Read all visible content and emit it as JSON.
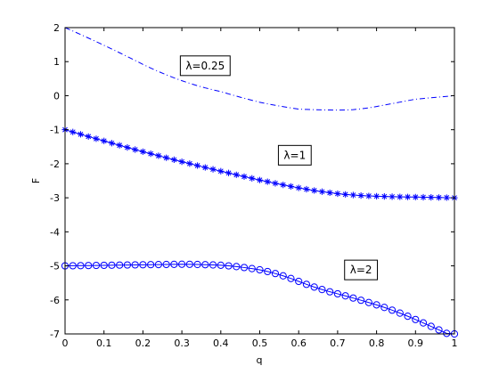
{
  "chart_data": {
    "type": "line",
    "xlabel": "q",
    "ylabel": "F",
    "xlim": [
      0,
      1
    ],
    "ylim": [
      -7,
      2
    ],
    "x_ticks": [
      "0",
      "0.1",
      "0.2",
      "0.3",
      "0.4",
      "0.5",
      "0.6",
      "0.7",
      "0.8",
      "0.9",
      "1"
    ],
    "y_ticks": [
      "2",
      "1",
      "0",
      "-1",
      "-2",
      "-3",
      "-4",
      "-5",
      "-6",
      "-7"
    ],
    "grid": false,
    "colors": {
      "series": "#0000ff",
      "axes": "#000000",
      "background": "#ffffff"
    },
    "x": [
      0,
      0.02,
      0.04,
      0.06,
      0.08,
      0.1,
      0.12,
      0.14,
      0.16,
      0.18,
      0.2,
      0.22,
      0.24,
      0.26,
      0.28,
      0.3,
      0.32,
      0.34,
      0.36,
      0.38,
      0.4,
      0.42,
      0.44,
      0.46,
      0.48,
      0.5,
      0.52,
      0.54,
      0.56,
      0.58,
      0.6,
      0.62,
      0.64,
      0.66,
      0.68,
      0.7,
      0.72,
      0.74,
      0.76,
      0.78,
      0.8,
      0.82,
      0.84,
      0.86,
      0.88,
      0.9,
      0.92,
      0.94,
      0.96,
      0.98,
      1
    ],
    "series": [
      {
        "line_style": "dash-dot",
        "marker": "none",
        "values": [
          2.0,
          1.8992,
          1.7968,
          1.6928,
          1.5872,
          1.48,
          1.3712,
          1.2608,
          1.1488,
          1.0352,
          0.92,
          0.8112,
          0.7088,
          0.6128,
          0.5232,
          0.44,
          0.3632,
          0.2928,
          0.2288,
          0.1712,
          0.12,
          0.0525,
          -0.0128,
          -0.0757,
          -0.1361,
          -0.1941,
          -0.2396,
          -0.2825,
          -0.3228,
          -0.3604,
          -0.3954,
          -0.4044,
          -0.4116,
          -0.4172,
          -0.421,
          -0.4232,
          -0.4205,
          -0.4087,
          -0.3876,
          -0.3574,
          -0.318,
          -0.2754,
          -0.2326,
          -0.1896,
          -0.1464,
          -0.103,
          -0.0822,
          -0.0617,
          -0.0413,
          -0.0206,
          0.0
        ]
      },
      {
        "line_style": "solid",
        "marker": "asterisk",
        "values": [
          -1.0,
          -1.0676,
          -1.1344,
          -1.2004,
          -1.2656,
          -1.33,
          -1.3946,
          -1.4584,
          -1.5214,
          -1.5836,
          -1.645,
          -1.7056,
          -1.7654,
          -1.8244,
          -1.8826,
          -1.94,
          -1.9972,
          -2.0536,
          -2.1092,
          -2.164,
          -2.218,
          -2.2718,
          -2.3248,
          -2.377,
          -2.4284,
          -2.479,
          -2.5274,
          -2.5746,
          -2.6206,
          -2.6654,
          -2.709,
          -2.7494,
          -2.7866,
          -2.8206,
          -2.8514,
          -2.879,
          -2.9008,
          -2.9192,
          -2.9342,
          -2.9458,
          -2.954,
          -2.9614,
          -2.9676,
          -2.9726,
          -2.9764,
          -2.979,
          -2.9832,
          -2.9874,
          -2.9916,
          -2.9958,
          -3.0
        ]
      },
      {
        "line_style": "solid",
        "marker": "circle",
        "values": [
          -5.0,
          -4.9968,
          -4.9936,
          -4.9904,
          -4.9872,
          -4.984,
          -4.9808,
          -4.9776,
          -4.9744,
          -4.9712,
          -4.968,
          -4.9648,
          -4.9616,
          -4.9584,
          -4.9552,
          -4.952,
          -4.9548,
          -4.9592,
          -4.9652,
          -4.9728,
          -4.982,
          -5.0,
          -5.0224,
          -5.0492,
          -5.0804,
          -5.116,
          -5.1664,
          -5.2256,
          -5.2936,
          -5.3704,
          -5.456,
          -5.5426,
          -5.6224,
          -5.6954,
          -5.7616,
          -5.821,
          -5.8824,
          -5.9456,
          -6.0106,
          -6.0774,
          -6.146,
          -6.2216,
          -6.3024,
          -6.3884,
          -6.4796,
          -6.576,
          -6.6768,
          -6.7782,
          -6.8802,
          -6.9828,
          -7.0
        ]
      }
    ],
    "annotations": [
      {
        "text": "λ=0.25",
        "x": 0.36,
        "y": 0.88
      },
      {
        "text": "λ=1",
        "x": 0.59,
        "y": -1.75
      },
      {
        "text": "λ=2",
        "x": 0.76,
        "y": -5.12
      }
    ]
  }
}
